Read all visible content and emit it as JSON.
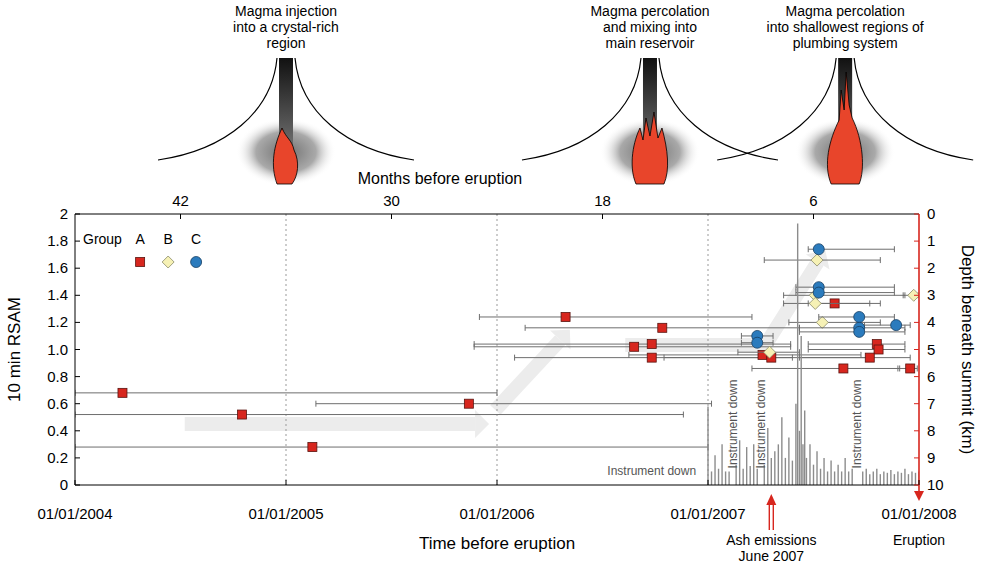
{
  "chart_data": {
    "type": "scatter",
    "x_label": "Time before eruption",
    "x2_label": "Months before eruption",
    "y_label": "10 min RSAM",
    "y2_label": "Depth beneath summit (km)",
    "xlim": [
      48,
      0
    ],
    "xticks": [
      {
        "value": 48,
        "label": "01/01/2004"
      },
      {
        "value": 36,
        "label": "01/01/2005"
      },
      {
        "value": 24,
        "label": "01/01/2006"
      },
      {
        "value": 12,
        "label": "01/01/2007"
      },
      {
        "value": 0,
        "label": "01/01/2008"
      }
    ],
    "x2ticks": [
      42,
      30,
      18,
      6
    ],
    "ylim": [
      0,
      2
    ],
    "yticks": [
      0,
      0.2,
      0.4,
      0.6,
      0.8,
      {
        "value": 1,
        "label": "1.0"
      },
      1.2,
      1.4,
      1.6,
      1.8,
      2
    ],
    "y2lim": [
      10,
      0
    ],
    "y2ticks": [
      0,
      1,
      2,
      3,
      4,
      5,
      6,
      7,
      8,
      9,
      10
    ],
    "grid": true,
    "legend": "upper left",
    "legend_title": "Group",
    "series": [
      {
        "name": "A",
        "color": "#d7261e",
        "marker": "square",
        "axis": "y2",
        "x": [
          45.3,
          38.5,
          34.5,
          25.6,
          20.1,
          14.6,
          16.2,
          15.2,
          15.2,
          8.9,
          8.4,
          4.8,
          2.4,
          2.3,
          2.8,
          4.3,
          0.5
        ],
        "values": [
          6.6,
          7.4,
          8.6,
          7.0,
          3.8,
          4.2,
          4.9,
          4.8,
          5.3,
          5.2,
          5.3,
          3.3,
          4.8,
          5.0,
          5.3,
          5.7,
          5.7
        ],
        "x_low": [
          48,
          48,
          48,
          34.3,
          25.0,
          22.4,
          25.3,
          25.3,
          23.0,
          16.5,
          14.5,
          6.3,
          6.3,
          6.3,
          6.8,
          9.5,
          1.2
        ],
        "x_high": [
          24,
          13.4,
          12,
          11.8,
          9.5,
          6.8,
          7.3,
          7.3,
          7.2,
          3.3,
          2.8,
          2.8,
          0.8,
          0.8,
          0.5,
          1.1,
          0.1
        ]
      },
      {
        "name": "B",
        "color": "#f6f1b5",
        "marker": "diamond",
        "axis": "y2",
        "x": [
          5.8,
          5.9,
          5.9,
          5.5,
          8.5,
          0.3
        ],
        "values": [
          1.7,
          3.0,
          3.3,
          4.0,
          5.1,
          3.0
        ],
        "x_low": [
          8.8,
          7.7,
          7.7,
          7.4,
          10.3,
          0.9
        ],
        "x_high": [
          2.2,
          0.8,
          2.2,
          2.2,
          6.8,
          0.05
        ]
      },
      {
        "name": "C",
        "color": "#2b7bbd",
        "marker": "circle",
        "axis": "y2",
        "x": [
          5.7,
          5.7,
          5.7,
          3.4,
          3.4,
          3.4,
          1.3,
          9.2,
          9.2
        ],
        "values": [
          1.3,
          2.7,
          2.9,
          3.8,
          4.2,
          4.35,
          4.1,
          4.5,
          4.75
        ],
        "x_low": [
          6.3,
          7.0,
          7.0,
          5.7,
          6.8,
          6.8,
          3.1,
          10.1,
          10.1
        ],
        "x_high": [
          1.4,
          1.4,
          1.4,
          1.4,
          0.8,
          0.8,
          0.5,
          8.3,
          8.3
        ]
      },
      {
        "type": "bar",
        "color": "#8c8c8c",
        "axis": "y",
        "x": [
          12.0,
          11.8,
          11.6,
          11.4,
          11.2,
          11.0,
          10.8,
          10.6,
          10.4,
          10.2,
          10.0,
          9.8,
          9.6,
          9.4,
          9.2,
          9.0,
          8.8,
          8.6,
          8.4,
          8.2,
          8.0,
          7.8,
          7.6,
          7.4,
          7.2,
          7.0,
          6.9,
          6.8,
          6.7,
          6.6,
          6.5,
          6.4,
          6.2,
          6.0,
          5.8,
          5.6,
          5.4,
          5.2,
          5.0,
          4.8,
          4.6,
          4.4,
          4.2,
          4.0,
          3.8,
          3.6,
          3.4,
          3.2,
          3.0,
          2.8,
          2.6,
          2.4,
          2.2,
          2.0,
          1.8,
          1.6,
          1.4,
          1.2,
          1.0,
          0.8,
          0.6,
          0.4,
          0.2,
          0.0
        ],
        "values": [
          0.58,
          0.1,
          0.22,
          0.12,
          0.3,
          0.1,
          0.1,
          null,
          0.15,
          0.33,
          0.12,
          0.28,
          0.14,
          0.3,
          0.12,
          null,
          0.15,
          0.42,
          0.2,
          0.25,
          0.3,
          0.5,
          0.2,
          0.35,
          0.18,
          0.6,
          1.93,
          0.4,
          1.1,
          0.3,
          0.55,
          0.2,
          0.3,
          0.15,
          0.25,
          0.12,
          0.2,
          0.1,
          0.18,
          0.1,
          0.15,
          0.1,
          0.2,
          0.1,
          0.12,
          null,
          null,
          0.1,
          0.12,
          0.08,
          0.1,
          0.12,
          0.08,
          0.1,
          0.09,
          0.11,
          0.08,
          0.1,
          0.09,
          0.12,
          0.08,
          0.1,
          0.09,
          0.1
        ]
      }
    ],
    "annotations": [
      {
        "text": "Instrument down",
        "x": 15.2,
        "y": 0.1,
        "orientation": "horizontal"
      },
      {
        "text": "Instrument down",
        "x": 10.6,
        "y": 0.45,
        "orientation": "vertical"
      },
      {
        "text": "Instrument down",
        "x": 9.0,
        "y": 0.45,
        "orientation": "vertical"
      },
      {
        "text": "Instrument down",
        "x": 3.5,
        "y": 0.45,
        "orientation": "vertical"
      }
    ],
    "events": [
      {
        "lines": [
          "Ash emissions",
          "June 2007"
        ],
        "x": 8.4,
        "marker": "arrow"
      },
      {
        "lines": [
          "Eruption"
        ],
        "x": 0,
        "marker": "none"
      }
    ],
    "stages": [
      {
        "lines": [
          "Magma injection",
          "into a crystal-rich",
          "region"
        ],
        "x": 36
      },
      {
        "lines": [
          "Magma percolation",
          "and mixing into",
          "main reservoir"
        ],
        "x": 15.3
      },
      {
        "lines": [
          "Magma percolation",
          "into shallowest regions of",
          "plumbing system"
        ],
        "x": 4.2
      }
    ]
  }
}
